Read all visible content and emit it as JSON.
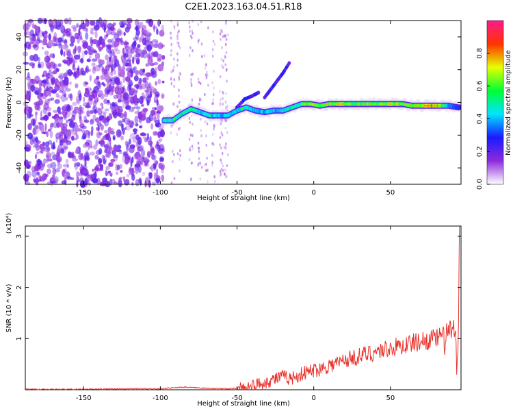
{
  "title": "C2E1.2023.163.04.51.R18",
  "chart_data": [
    {
      "type": "heatmap",
      "xlabel": "Height of straight line (km)",
      "ylabel": "Frequency (Hz)",
      "xlim": [
        -188,
        96
      ],
      "ylim": [
        -50,
        50
      ],
      "xticks": [
        -150,
        -100,
        -50,
        0,
        50
      ],
      "yticks": [
        -40,
        -20,
        0,
        20,
        40
      ],
      "grid": false,
      "colorbar": {
        "label": "Normalized spectral amplitude",
        "range": [
          0,
          1
        ],
        "ticks": [
          "0.0",
          "0.2",
          "0.4",
          "0.6",
          "0.8"
        ],
        "colormap": [
          "#ffffff",
          "#8e2bdc",
          "#1a1aff",
          "#00e5ff",
          "#00ff33",
          "#e6ff00",
          "#ff3300",
          "#ff1a8c"
        ]
      },
      "features": {
        "noise_region_height_km": [
          -188,
          -98
        ],
        "main_trace": [
          {
            "x": -98,
            "y": -11,
            "a": 0.6
          },
          {
            "x": -92,
            "y": -11,
            "a": 0.62
          },
          {
            "x": -86,
            "y": -7,
            "a": 0.6
          },
          {
            "x": -80,
            "y": -4,
            "a": 0.65
          },
          {
            "x": -74,
            "y": -6,
            "a": 0.55
          },
          {
            "x": -68,
            "y": -8,
            "a": 0.6
          },
          {
            "x": -62,
            "y": -8,
            "a": 0.5
          },
          {
            "x": -56,
            "y": -8,
            "a": 0.55
          },
          {
            "x": -50,
            "y": -5,
            "a": 0.55
          },
          {
            "x": -44,
            "y": -3,
            "a": 0.6
          },
          {
            "x": -38,
            "y": -5,
            "a": 0.55
          },
          {
            "x": -32,
            "y": -6,
            "a": 0.5
          },
          {
            "x": -26,
            "y": -5,
            "a": 0.55
          },
          {
            "x": -20,
            "y": -5,
            "a": 0.55
          },
          {
            "x": -14,
            "y": -3,
            "a": 0.6
          },
          {
            "x": -8,
            "y": -1,
            "a": 0.7
          },
          {
            "x": -2,
            "y": -1,
            "a": 0.75
          },
          {
            "x": 4,
            "y": -2,
            "a": 0.72
          },
          {
            "x": 10,
            "y": -1,
            "a": 0.78
          },
          {
            "x": 16,
            "y": -1,
            "a": 0.8
          },
          {
            "x": 22,
            "y": -1,
            "a": 0.82
          },
          {
            "x": 28,
            "y": -1,
            "a": 0.7
          },
          {
            "x": 34,
            "y": -1,
            "a": 0.75
          },
          {
            "x": 40,
            "y": -1,
            "a": 0.72
          },
          {
            "x": 46,
            "y": -1,
            "a": 0.75
          },
          {
            "x": 52,
            "y": -1,
            "a": 0.8
          },
          {
            "x": 58,
            "y": -1,
            "a": 0.78
          },
          {
            "x": 64,
            "y": -2,
            "a": 0.75
          },
          {
            "x": 70,
            "y": -2,
            "a": 0.85
          },
          {
            "x": 76,
            "y": -2,
            "a": 0.95
          },
          {
            "x": 82,
            "y": -2,
            "a": 0.9
          },
          {
            "x": 88,
            "y": -2,
            "a": 0.45
          },
          {
            "x": 94,
            "y": -3,
            "a": 0.4
          }
        ],
        "secondary_traces": [
          [
            {
              "x": -50,
              "y": -3
            },
            {
              "x": -45,
              "y": 2
            },
            {
              "x": -40,
              "y": 4
            },
            {
              "x": -36,
              "y": 6
            }
          ],
          [
            {
              "x": -32,
              "y": 3
            },
            {
              "x": -28,
              "y": 8
            },
            {
              "x": -24,
              "y": 13
            },
            {
              "x": -20,
              "y": 18
            },
            {
              "x": -16,
              "y": 24
            }
          ]
        ]
      }
    },
    {
      "type": "line",
      "xlabel": "Height of straight line (km)",
      "ylabel": "SNR (10 * v/v)",
      "scale_label": "(x10⁴)",
      "xlim": [
        -188,
        96
      ],
      "ylim": [
        0,
        3.2
      ],
      "xticks": [
        -150,
        -100,
        -50,
        0,
        50
      ],
      "yticks": [
        1,
        2,
        3
      ],
      "grid": false,
      "series": [
        {
          "color": "#e8302a",
          "x": [
            -188,
            -150,
            -120,
            -100,
            -85,
            -70,
            -55,
            -45,
            -40,
            -35,
            -30,
            -25,
            -20,
            -15,
            -10,
            -5,
            0,
            5,
            10,
            15,
            20,
            25,
            30,
            35,
            40,
            45,
            50,
            55,
            60,
            65,
            70,
            75,
            80,
            85,
            88,
            90,
            92,
            94,
            95
          ],
          "y": [
            0.01,
            0.01,
            0.02,
            0.02,
            0.05,
            0.03,
            0.02,
            0.04,
            0.08,
            0.12,
            0.16,
            0.22,
            0.26,
            0.22,
            0.28,
            0.34,
            0.38,
            0.42,
            0.48,
            0.52,
            0.58,
            0.62,
            0.66,
            0.7,
            0.74,
            0.78,
            0.82,
            0.84,
            0.88,
            0.92,
            0.95,
            0.98,
            1.0,
            1.05,
            1.1,
            1.2,
            0.9,
            0.4,
            3.2
          ]
        }
      ]
    }
  ]
}
